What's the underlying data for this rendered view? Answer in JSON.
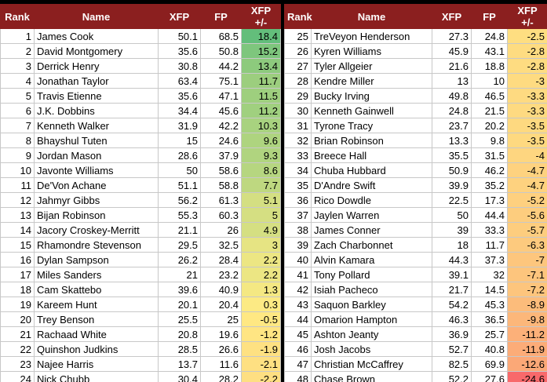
{
  "columns": [
    "Rank",
    "Name",
    "XFP",
    "FP",
    "XFP +/-"
  ],
  "colors": {
    "header_bg": "#8b1f1f",
    "scale_high": "#63be7b",
    "scale_mid": "#ffeb84",
    "scale_low": "#f8696b"
  },
  "rows": [
    {
      "rank": "1",
      "name": "James Cook",
      "xfp": "50.1",
      "fp": "68.5",
      "diff": "18.4"
    },
    {
      "rank": "2",
      "name": "David Montgomery",
      "xfp": "35.6",
      "fp": "50.8",
      "diff": "15.2"
    },
    {
      "rank": "3",
      "name": "Derrick Henry",
      "xfp": "30.8",
      "fp": "44.2",
      "diff": "13.4"
    },
    {
      "rank": "4",
      "name": "Jonathan Taylor",
      "xfp": "63.4",
      "fp": "75.1",
      "diff": "11.7"
    },
    {
      "rank": "5",
      "name": "Travis Etienne",
      "xfp": "35.6",
      "fp": "47.1",
      "diff": "11.5"
    },
    {
      "rank": "6",
      "name": "J.K. Dobbins",
      "xfp": "34.4",
      "fp": "45.6",
      "diff": "11.2"
    },
    {
      "rank": "7",
      "name": "Kenneth Walker",
      "xfp": "31.9",
      "fp": "42.2",
      "diff": "10.3"
    },
    {
      "rank": "8",
      "name": "Bhayshul Tuten",
      "xfp": "15",
      "fp": "24.6",
      "diff": "9.6"
    },
    {
      "rank": "9",
      "name": "Jordan Mason",
      "xfp": "28.6",
      "fp": "37.9",
      "diff": "9.3"
    },
    {
      "rank": "10",
      "name": "Javonte Williams",
      "xfp": "50",
      "fp": "58.6",
      "diff": "8.6"
    },
    {
      "rank": "11",
      "name": "De'Von Achane",
      "xfp": "51.1",
      "fp": "58.8",
      "diff": "7.7"
    },
    {
      "rank": "12",
      "name": "Jahmyr Gibbs",
      "xfp": "56.2",
      "fp": "61.3",
      "diff": "5.1"
    },
    {
      "rank": "13",
      "name": "Bijan Robinson",
      "xfp": "55.3",
      "fp": "60.3",
      "diff": "5"
    },
    {
      "rank": "14",
      "name": "Jacory Croskey-Merritt",
      "xfp": "21.1",
      "fp": "26",
      "diff": "4.9"
    },
    {
      "rank": "15",
      "name": "Rhamondre Stevenson",
      "xfp": "29.5",
      "fp": "32.5",
      "diff": "3"
    },
    {
      "rank": "16",
      "name": "Dylan Sampson",
      "xfp": "26.2",
      "fp": "28.4",
      "diff": "2.2"
    },
    {
      "rank": "17",
      "name": "Miles Sanders",
      "xfp": "21",
      "fp": "23.2",
      "diff": "2.2"
    },
    {
      "rank": "18",
      "name": "Cam Skattebo",
      "xfp": "39.6",
      "fp": "40.9",
      "diff": "1.3"
    },
    {
      "rank": "19",
      "name": "Kareem Hunt",
      "xfp": "20.1",
      "fp": "20.4",
      "diff": "0.3"
    },
    {
      "rank": "20",
      "name": "Trey Benson",
      "xfp": "25.5",
      "fp": "25",
      "diff": "-0.5"
    },
    {
      "rank": "21",
      "name": "Rachaad White",
      "xfp": "20.8",
      "fp": "19.6",
      "diff": "-1.2"
    },
    {
      "rank": "22",
      "name": "Quinshon Judkins",
      "xfp": "28.5",
      "fp": "26.6",
      "diff": "-1.9"
    },
    {
      "rank": "23",
      "name": "Najee Harris",
      "xfp": "13.7",
      "fp": "11.6",
      "diff": "-2.1"
    },
    {
      "rank": "24",
      "name": "Nick Chubb",
      "xfp": "30.4",
      "fp": "28.2",
      "diff": "-2.2"
    },
    {
      "rank": "25",
      "name": "TreVeyon Henderson",
      "xfp": "27.3",
      "fp": "24.8",
      "diff": "-2.5"
    },
    {
      "rank": "26",
      "name": "Kyren Williams",
      "xfp": "45.9",
      "fp": "43.1",
      "diff": "-2.8"
    },
    {
      "rank": "27",
      "name": "Tyler Allgeier",
      "xfp": "21.6",
      "fp": "18.8",
      "diff": "-2.8"
    },
    {
      "rank": "28",
      "name": "Kendre Miller",
      "xfp": "13",
      "fp": "10",
      "diff": "-3"
    },
    {
      "rank": "29",
      "name": "Bucky Irving",
      "xfp": "49.8",
      "fp": "46.5",
      "diff": "-3.3"
    },
    {
      "rank": "30",
      "name": "Kenneth Gainwell",
      "xfp": "24.8",
      "fp": "21.5",
      "diff": "-3.3"
    },
    {
      "rank": "31",
      "name": "Tyrone Tracy",
      "xfp": "23.7",
      "fp": "20.2",
      "diff": "-3.5"
    },
    {
      "rank": "32",
      "name": "Brian Robinson",
      "xfp": "13.3",
      "fp": "9.8",
      "diff": "-3.5"
    },
    {
      "rank": "33",
      "name": "Breece Hall",
      "xfp": "35.5",
      "fp": "31.5",
      "diff": "-4"
    },
    {
      "rank": "34",
      "name": "Chuba Hubbard",
      "xfp": "50.9",
      "fp": "46.2",
      "diff": "-4.7"
    },
    {
      "rank": "35",
      "name": "D'Andre Swift",
      "xfp": "39.9",
      "fp": "35.2",
      "diff": "-4.7"
    },
    {
      "rank": "36",
      "name": "Rico Dowdle",
      "xfp": "22.5",
      "fp": "17.3",
      "diff": "-5.2"
    },
    {
      "rank": "37",
      "name": "Jaylen Warren",
      "xfp": "50",
      "fp": "44.4",
      "diff": "-5.6"
    },
    {
      "rank": "38",
      "name": "James Conner",
      "xfp": "39",
      "fp": "33.3",
      "diff": "-5.7"
    },
    {
      "rank": "39",
      "name": "Zach Charbonnet",
      "xfp": "18",
      "fp": "11.7",
      "diff": "-6.3"
    },
    {
      "rank": "40",
      "name": "Alvin Kamara",
      "xfp": "44.3",
      "fp": "37.3",
      "diff": "-7"
    },
    {
      "rank": "41",
      "name": "Tony Pollard",
      "xfp": "39.1",
      "fp": "32",
      "diff": "-7.1"
    },
    {
      "rank": "42",
      "name": "Isiah Pacheco",
      "xfp": "21.7",
      "fp": "14.5",
      "diff": "-7.2"
    },
    {
      "rank": "43",
      "name": "Saquon Barkley",
      "xfp": "54.2",
      "fp": "45.3",
      "diff": "-8.9"
    },
    {
      "rank": "44",
      "name": "Omarion Hampton",
      "xfp": "46.3",
      "fp": "36.5",
      "diff": "-9.8"
    },
    {
      "rank": "45",
      "name": "Ashton Jeanty",
      "xfp": "36.9",
      "fp": "25.7",
      "diff": "-11.2"
    },
    {
      "rank": "46",
      "name": "Josh Jacobs",
      "xfp": "52.7",
      "fp": "40.8",
      "diff": "-11.9"
    },
    {
      "rank": "47",
      "name": "Christian McCaffrey",
      "xfp": "82.5",
      "fp": "69.9",
      "diff": "-12.6"
    },
    {
      "rank": "48",
      "name": "Chase Brown",
      "xfp": "52.2",
      "fp": "27.6",
      "diff": "-24.6"
    }
  ]
}
